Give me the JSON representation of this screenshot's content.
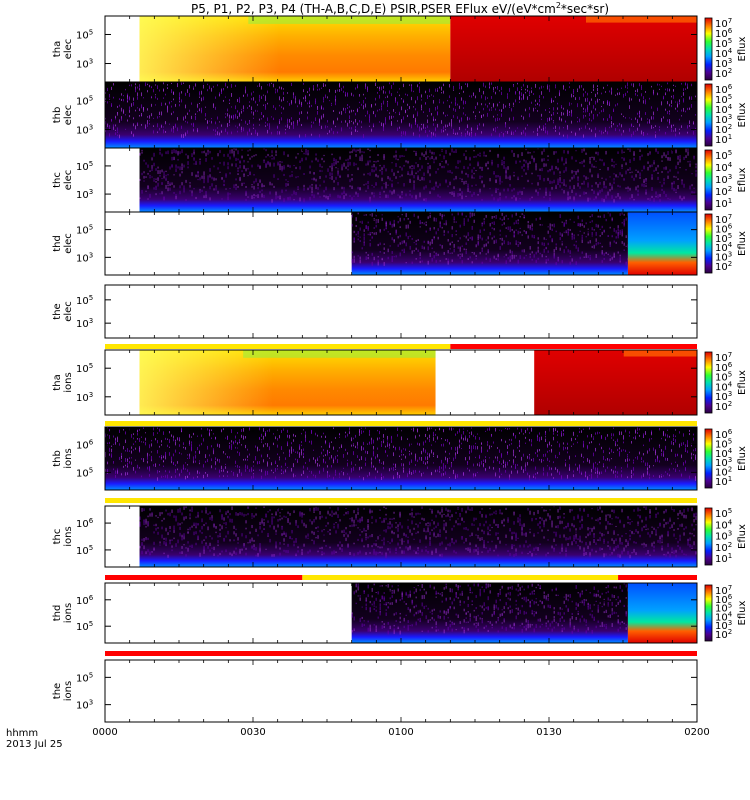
{
  "chart_data": {
    "type": "heatmap",
    "title": "P5, P1, P2, P3, P4 (TH-A,B,C,D,E) PSIR,PSER EFlux eV/(eV*cm^2*sec*sr)",
    "xlabel": "hhmm",
    "date_label": "2013 Jul 25",
    "x_ticks": [
      "0000",
      "0030",
      "0100",
      "0130",
      "0200"
    ],
    "x_range_minutes": [
      0,
      120
    ],
    "colorbar_label": "Eflux",
    "panels": [
      {
        "probe": "tha",
        "species": "elec",
        "ylabel_1": "tha",
        "ylabel_2": "elec",
        "y_ticks": [
          "10^5",
          "10^3"
        ],
        "cbar_ticks": [
          "10^7",
          "10^6",
          "10^5",
          "10^4",
          "10^3",
          "10^2"
        ],
        "style": "smooth",
        "segments": [
          {
            "start": 0,
            "end": 7,
            "fill": "none"
          },
          {
            "start": 7,
            "end": 70,
            "fill": "hot"
          },
          {
            "start": 70,
            "end": 120,
            "fill": "red"
          }
        ]
      },
      {
        "probe": "thb",
        "species": "elec",
        "ylabel_1": "thb",
        "ylabel_2": "elec",
        "y_ticks": [
          "10^5",
          "10^3"
        ],
        "cbar_ticks": [
          "10^6",
          "10^5",
          "10^4",
          "10^3",
          "10^2",
          "10^1"
        ],
        "style": "noise",
        "segments": [
          {
            "start": 0,
            "end": 120,
            "fill": "noise"
          }
        ]
      },
      {
        "probe": "thc",
        "species": "elec",
        "ylabel_1": "thc",
        "ylabel_2": "elec",
        "y_ticks": [
          "10^5",
          "10^3"
        ],
        "cbar_ticks": [
          "10^5",
          "10^4",
          "10^3",
          "10^2",
          "10^1"
        ],
        "style": "noise",
        "segments": [
          {
            "start": 0,
            "end": 7,
            "fill": "none"
          },
          {
            "start": 7,
            "end": 120,
            "fill": "noise"
          }
        ]
      },
      {
        "probe": "thd",
        "species": "elec",
        "ylabel_1": "thd",
        "ylabel_2": "elec",
        "y_ticks": [
          "10^5",
          "10^3"
        ],
        "cbar_ticks": [
          "10^7",
          "10^6",
          "10^5",
          "10^4",
          "10^3",
          "10^2"
        ],
        "style": "noise",
        "segments": [
          {
            "start": 0,
            "end": 50,
            "fill": "none"
          },
          {
            "start": 50,
            "end": 106,
            "fill": "noise"
          },
          {
            "start": 106,
            "end": 120,
            "fill": "blue"
          }
        ]
      },
      {
        "probe": "the",
        "species": "elec",
        "ylabel_1": "the",
        "ylabel_2": "elec",
        "y_ticks": [
          "10^5",
          "10^3"
        ],
        "cbar_ticks": [],
        "style": "empty",
        "segments": []
      },
      {
        "probe": "tha",
        "species": "ions",
        "ylabel_1": "tha",
        "ylabel_2": "ions",
        "y_ticks": [
          "10^5",
          "10^3"
        ],
        "cbar_ticks": [
          "10^7",
          "10^6",
          "10^5",
          "10^4",
          "10^3",
          "10^2"
        ],
        "style": "smooth",
        "segments": [
          {
            "start": 0,
            "end": 7,
            "fill": "none"
          },
          {
            "start": 7,
            "end": 67,
            "fill": "hot"
          },
          {
            "start": 67,
            "end": 87,
            "fill": "none"
          },
          {
            "start": 87,
            "end": 120,
            "fill": "red"
          }
        ]
      },
      {
        "probe": "thb",
        "species": "ions",
        "ylabel_1": "thb",
        "ylabel_2": "ions",
        "y_ticks": [
          "10^6",
          "10^5"
        ],
        "cbar_ticks": [
          "10^6",
          "10^5",
          "10^4",
          "10^3",
          "10^2",
          "10^1"
        ],
        "style": "noise",
        "segments": [
          {
            "start": 0,
            "end": 120,
            "fill": "noise"
          }
        ]
      },
      {
        "probe": "thc",
        "species": "ions",
        "ylabel_1": "thc",
        "ylabel_2": "ions",
        "y_ticks": [
          "10^6",
          "10^5"
        ],
        "cbar_ticks": [
          "10^5",
          "10^4",
          "10^3",
          "10^2",
          "10^1"
        ],
        "style": "noise",
        "segments": [
          {
            "start": 0,
            "end": 7,
            "fill": "none"
          },
          {
            "start": 7,
            "end": 120,
            "fill": "noise"
          }
        ]
      },
      {
        "probe": "thd",
        "species": "ions",
        "ylabel_1": "thd",
        "ylabel_2": "ions",
        "y_ticks": [
          "10^6",
          "10^5"
        ],
        "cbar_ticks": [
          "10^7",
          "10^6",
          "10^5",
          "10^4",
          "10^3",
          "10^2"
        ],
        "style": "noise",
        "segments": [
          {
            "start": 0,
            "end": 50,
            "fill": "none"
          },
          {
            "start": 50,
            "end": 106,
            "fill": "noise"
          },
          {
            "start": 106,
            "end": 120,
            "fill": "blue"
          }
        ]
      },
      {
        "probe": "the",
        "species": "ions",
        "ylabel_1": "the",
        "ylabel_2": "ions",
        "y_ticks": [
          "10^5",
          "10^3"
        ],
        "cbar_ticks": [],
        "style": "empty",
        "segments": []
      }
    ],
    "mode_bars": [
      {
        "after_panel": 4,
        "segments": [
          {
            "start": 0,
            "end": 70,
            "color": "#ffe600"
          },
          {
            "start": 70,
            "end": 120,
            "color": "#ff0000"
          }
        ]
      },
      {
        "after_panel": 5,
        "segments": [
          {
            "start": 0,
            "end": 120,
            "color": "#ffe600"
          }
        ]
      },
      {
        "after_panel": 6,
        "segments": [
          {
            "start": 0,
            "end": 120,
            "color": "#ffe600"
          }
        ]
      },
      {
        "after_panel": 7,
        "segments": [
          {
            "start": 0,
            "end": 40,
            "color": "#ff0000"
          },
          {
            "start": 40,
            "end": 104,
            "color": "#ffe600"
          },
          {
            "start": 104,
            "end": 120,
            "color": "#ff0000"
          }
        ]
      },
      {
        "after_panel": 8,
        "segments": [
          {
            "start": 0,
            "end": 120,
            "color": "#ff0000"
          }
        ]
      }
    ]
  }
}
